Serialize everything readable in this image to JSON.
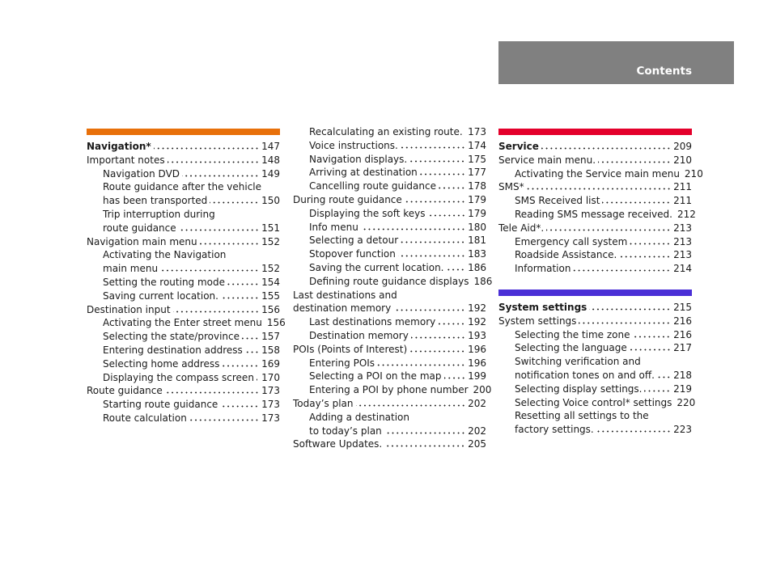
{
  "header": {
    "title": "Contents",
    "color": "#808080"
  },
  "colors": {
    "navigation": "#e8700a",
    "service": "#e4002b",
    "system": "#4a2fd6"
  },
  "columns": [
    {
      "sections": [
        {
          "bar": "navigation",
          "entries": [
            {
              "text": "Navigation*",
              "page": "147",
              "level": 0,
              "bold": true
            },
            {
              "text": "Important notes",
              "page": "148",
              "level": 0
            },
            {
              "text": "Navigation DVD",
              "page": "149",
              "level": 1
            },
            {
              "text": "Route guidance after the vehicle",
              "level": 1
            },
            {
              "text": "has been transported",
              "page": "150",
              "level": 1
            },
            {
              "text": "Trip interruption during",
              "level": 1
            },
            {
              "text": "route guidance",
              "page": "151",
              "level": 1
            },
            {
              "text": "Navigation main menu",
              "page": "152",
              "level": 0
            },
            {
              "text": "Activating the Navigation",
              "level": 1
            },
            {
              "text": "main menu",
              "page": "152",
              "level": 1
            },
            {
              "text": "Setting the routing mode",
              "page": "154",
              "level": 1
            },
            {
              "text": "Saving current location.",
              "page": "155",
              "level": 1
            },
            {
              "text": "Destination input",
              "page": "156",
              "level": 0
            },
            {
              "text": "Activating the Enter street menu",
              "page": "156",
              "level": 1
            },
            {
              "text": "Selecting the state/province",
              "page": "157",
              "level": 1
            },
            {
              "text": "Entering destination address",
              "page": "158",
              "level": 1
            },
            {
              "text": "Selecting home address",
              "page": "169",
              "level": 1
            },
            {
              "text": "Displaying the compass screen",
              "page": "170",
              "level": 1
            },
            {
              "text": "Route guidance",
              "page": "173",
              "level": 0
            },
            {
              "text": "Starting route guidance",
              "page": "173",
              "level": 1
            },
            {
              "text": "Route calculation",
              "page": "173",
              "level": 1
            }
          ]
        }
      ]
    },
    {
      "sections": [
        {
          "bar": null,
          "entries": [
            {
              "text": "Recalculating an existing route.",
              "page": "173",
              "level": 1
            },
            {
              "text": "Voice instructions.",
              "page": "174",
              "level": 1
            },
            {
              "text": "Navigation displays.",
              "page": "175",
              "level": 1
            },
            {
              "text": "Arriving at destination",
              "page": "177",
              "level": 1
            },
            {
              "text": "Cancelling route guidance",
              "page": "178",
              "level": 1
            },
            {
              "text": "During route guidance",
              "page": "179",
              "level": 0
            },
            {
              "text": "Displaying the soft keys",
              "page": "179",
              "level": 1
            },
            {
              "text": "Info menu",
              "page": "180",
              "level": 1
            },
            {
              "text": "Selecting a detour",
              "page": "181",
              "level": 1
            },
            {
              "text": "Stopover function",
              "page": "183",
              "level": 1
            },
            {
              "text": "Saving the current location.",
              "page": "186",
              "level": 1
            },
            {
              "text": "Defining route guidance displays",
              "page": "186",
              "level": 1
            },
            {
              "text": "Last destinations and",
              "level": 0
            },
            {
              "text": "destination memory",
              "page": "192",
              "level": 0
            },
            {
              "text": "Last destinations memory",
              "page": "192",
              "level": 1
            },
            {
              "text": "Destination memory",
              "page": "193",
              "level": 1
            },
            {
              "text": "POIs (Points of Interest)",
              "page": "196",
              "level": 0
            },
            {
              "text": "Entering POIs",
              "page": "196",
              "level": 1
            },
            {
              "text": "Selecting a POI on the map",
              "page": "199",
              "level": 1
            },
            {
              "text": "Entering a POI by phone number",
              "page": "200",
              "level": 1
            },
            {
              "text": "Today’s plan",
              "page": "202",
              "level": 0
            },
            {
              "text": "Adding a destination",
              "level": 1
            },
            {
              "text": "to today’s plan",
              "page": "202",
              "level": 1
            },
            {
              "text": "Software Updates.",
              "page": "205",
              "level": 0
            }
          ]
        }
      ]
    },
    {
      "sections": [
        {
          "bar": "service",
          "entries": [
            {
              "text": "Service",
              "page": "209",
              "level": 0,
              "bold": true
            },
            {
              "text": "Service main menu.",
              "page": "210",
              "level": 0
            },
            {
              "text": "Activating the Service main menu",
              "page": "210",
              "level": 1
            },
            {
              "text": "SMS*",
              "page": "211",
              "level": 0
            },
            {
              "text": "SMS Received list",
              "page": "211",
              "level": 1
            },
            {
              "text": "Reading SMS message received.",
              "page": "212",
              "level": 1
            },
            {
              "text": "Tele Aid*.",
              "page": "213",
              "level": 0
            },
            {
              "text": "Emergency call system",
              "page": "213",
              "level": 1
            },
            {
              "text": "Roadside Assistance.",
              "page": "213",
              "level": 1
            },
            {
              "text": "Information",
              "page": "214",
              "level": 1
            }
          ]
        },
        {
          "bar": "system",
          "entries": [
            {
              "text": "System settings",
              "page": "215",
              "level": 0,
              "bold": true
            },
            {
              "text": "System settings",
              "page": "216",
              "level": 0
            },
            {
              "text": "Selecting the time zone",
              "page": "216",
              "level": 1
            },
            {
              "text": "Selecting the language",
              "page": "217",
              "level": 1
            },
            {
              "text": "Switching verification and",
              "level": 1
            },
            {
              "text": "notification tones on and off.",
              "page": "218",
              "level": 1
            },
            {
              "text": "Selecting display settings.",
              "page": "219",
              "level": 1
            },
            {
              "text": "Selecting Voice control* settings",
              "page": "220",
              "level": 1
            },
            {
              "text": "Resetting all settings to the",
              "level": 1
            },
            {
              "text": "factory settings.",
              "page": "223",
              "level": 1
            }
          ]
        }
      ]
    }
  ]
}
